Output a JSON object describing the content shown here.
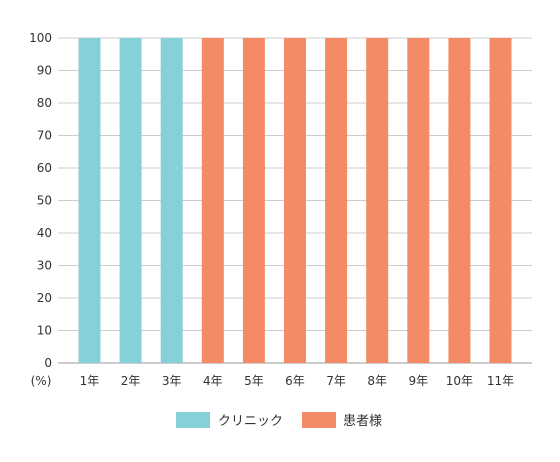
{
  "chart_data": {
    "type": "bar",
    "categories": [
      "1年",
      "2年",
      "3年",
      "4年",
      "5年",
      "6年",
      "7年",
      "8年",
      "9年",
      "10年",
      "11年"
    ],
    "values": [
      100,
      100,
      100,
      100,
      100,
      100,
      100,
      100,
      100,
      100,
      100
    ],
    "payer": [
      "クリニック",
      "クリニック",
      "クリニック",
      "患者様",
      "患者様",
      "患者様",
      "患者様",
      "患者様",
      "患者様",
      "患者様",
      "患者様"
    ],
    "y_unit_label": "(%)",
    "ylim": [
      0,
      100
    ],
    "yticks": [
      0,
      10,
      20,
      30,
      40,
      50,
      60,
      70,
      80,
      90,
      100
    ],
    "grid": true,
    "legend_position": "bottom-center",
    "series": [
      {
        "name": "クリニック",
        "color": "#86d0da"
      },
      {
        "name": "患者様",
        "color": "#f58a66"
      }
    ]
  }
}
